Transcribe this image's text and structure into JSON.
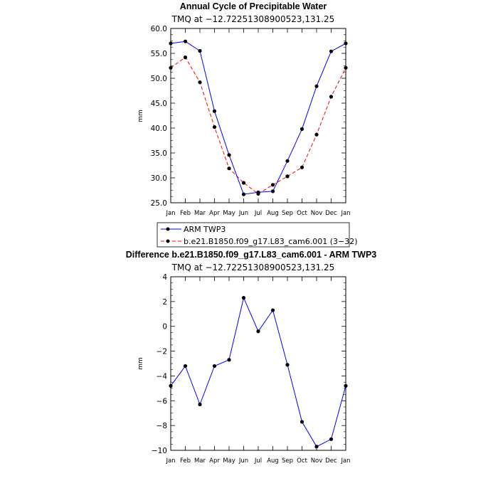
{
  "chart_data": [
    {
      "type": "line",
      "title": "Annual Cycle of Precipitable Water",
      "subtitle": "TMQ at −12.72251308900523,131.25",
      "xlabel": "",
      "ylabel": "mm",
      "categories": [
        "Jan",
        "Feb",
        "Mar",
        "Apr",
        "May",
        "Jun",
        "Jul",
        "Aug",
        "Sep",
        "Oct",
        "Nov",
        "Dec",
        "Jan"
      ],
      "ylim": [
        25,
        60
      ],
      "yticks": [
        "25.0",
        "30.0",
        "35.0",
        "40.0",
        "45.0",
        "50.0",
        "55.0",
        "60.0"
      ],
      "legend_position": "bottom",
      "series": [
        {
          "name": "ARM TWP3",
          "color": "#0000ff",
          "dash": "solid",
          "values": [
            57.0,
            57.4,
            55.5,
            43.4,
            34.6,
            26.7,
            27.1,
            27.3,
            33.4,
            39.8,
            48.4,
            55.4,
            57.0
          ]
        },
        {
          "name": "b.e21.B1850.f09_g17.L83_cam6.001 (3−32)",
          "color": "#ff0000",
          "dash": "dashed",
          "values": [
            52.1,
            54.2,
            49.2,
            40.2,
            31.9,
            29.0,
            26.8,
            28.6,
            30.3,
            32.1,
            38.7,
            46.3,
            52.1
          ]
        }
      ]
    },
    {
      "type": "line",
      "title": "Difference b.e21.B1850.f09_g17.L83_cam6.001 - ARM TWP3",
      "subtitle": "TMQ at −12.72251308900523,131.25",
      "xlabel": "",
      "ylabel": "mm",
      "categories": [
        "Jan",
        "Feb",
        "Mar",
        "Apr",
        "May",
        "Jun",
        "Jul",
        "Aug",
        "Sep",
        "Oct",
        "Nov",
        "Dec",
        "Jan"
      ],
      "ylim": [
        -10,
        4
      ],
      "yticks": [
        "−10",
        "−8",
        "−6",
        "−4",
        "−2",
        "0",
        "2",
        "4"
      ],
      "series": [
        {
          "name": "",
          "color": "#0000ff",
          "dash": "solid",
          "values": [
            -4.8,
            -3.2,
            -6.3,
            -3.2,
            -2.7,
            2.3,
            -0.4,
            1.3,
            -3.1,
            -7.7,
            -9.7,
            -9.1,
            -4.8
          ]
        }
      ]
    }
  ]
}
